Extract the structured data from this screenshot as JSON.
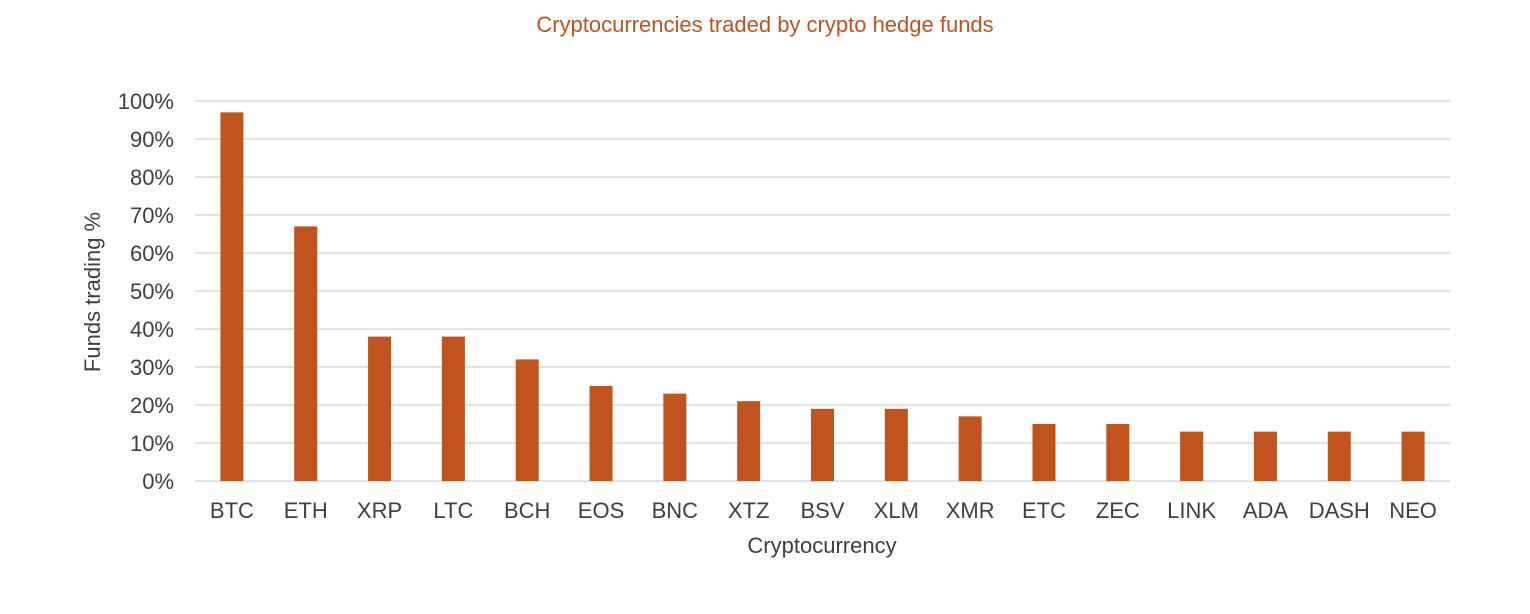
{
  "chart_data": {
    "type": "bar",
    "title": "Cryptocurrencies traded by crypto hedge funds",
    "xlabel": "Cryptocurrency",
    "ylabel": "Funds trading %",
    "categories": [
      "BTC",
      "ETH",
      "XRP",
      "LTC",
      "BCH",
      "EOS",
      "BNC",
      "XTZ",
      "BSV",
      "XLM",
      "XMR",
      "ETC",
      "ZEC",
      "LINK",
      "ADA",
      "DASH",
      "NEO"
    ],
    "values": [
      97,
      67,
      38,
      38,
      32,
      25,
      23,
      21,
      19,
      19,
      17,
      15,
      15,
      13,
      13,
      13,
      13
    ],
    "ylim": [
      0,
      100
    ],
    "yticks": [
      "0%",
      "10%",
      "20%",
      "30%",
      "40%",
      "50%",
      "60%",
      "70%",
      "80%",
      "90%",
      "100%"
    ],
    "grid": true,
    "legend": "none",
    "colors": {
      "bar": "#C0531E",
      "title": "#C0531E",
      "grid": "#D9D9D9",
      "text": "#404040"
    }
  }
}
